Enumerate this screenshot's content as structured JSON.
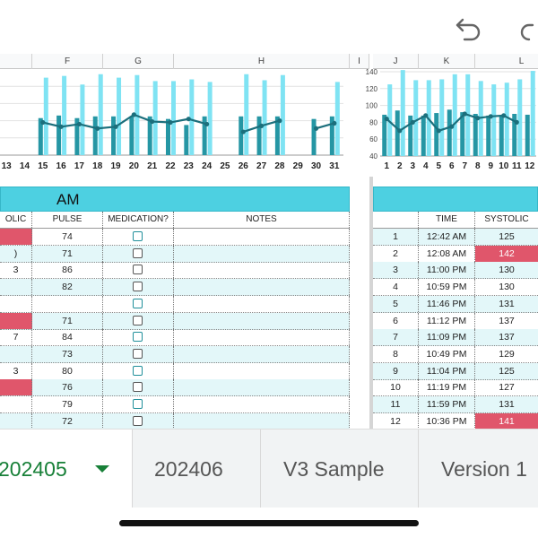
{
  "toolbar": {
    "undo_icon": "undo-icon",
    "redo_icon": "redo-icon"
  },
  "columns_left": [
    "F",
    "G",
    "H",
    "I"
  ],
  "columns_right": [
    "J",
    "K",
    "L"
  ],
  "colors": {
    "light_bar": "#7fe3f3",
    "dark_bar": "#2596a4",
    "line": "#1c6f7c",
    "header_band": "#4dd0e1",
    "alert": "#e0566b",
    "active_tab": "#188038"
  },
  "chart_data": [
    {
      "type": "bar",
      "x": [
        "13",
        "14",
        "15",
        "16",
        "17",
        "18",
        "19",
        "20",
        "21",
        "22",
        "23",
        "24",
        "25",
        "26",
        "27",
        "28",
        "29",
        "30",
        "31"
      ],
      "series": [
        {
          "values": [
            null,
            null,
            130,
            132,
            122,
            134,
            130,
            133,
            126,
            126,
            128,
            125,
            null,
            134,
            127,
            133,
            null,
            null,
            125
          ]
        },
        {
          "values": [
            null,
            null,
            83,
            86,
            83,
            85,
            85,
            85,
            85,
            82,
            75,
            85,
            null,
            85,
            85,
            85,
            null,
            82,
            85
          ]
        },
        {
          "values": [
            null,
            null,
            78,
            73,
            76,
            71,
            73,
            87,
            79,
            78,
            82,
            76,
            null,
            67,
            74,
            80,
            null,
            71,
            77
          ]
        }
      ],
      "xlabel": "",
      "ylabel": ""
    },
    {
      "type": "bar",
      "x": [
        "1",
        "2",
        "3",
        "4",
        "5",
        "6",
        "7",
        "8",
        "9",
        "10",
        "11",
        "12"
      ],
      "series": [
        {
          "values": [
            125,
            142,
            130,
            130,
            131,
            137,
            137,
            129,
            125,
            127,
            131,
            141
          ]
        },
        {
          "values": [
            89,
            94,
            88,
            88,
            91,
            95,
            92,
            90,
            88,
            87,
            90,
            89
          ]
        },
        {
          "values": [
            84,
            70,
            80,
            88,
            70,
            75,
            90,
            85,
            87,
            88,
            80,
            null
          ]
        }
      ],
      "yticks": [
        "140",
        "120",
        "100",
        "80",
        "60",
        "40"
      ],
      "ylim": [
        40,
        140
      ]
    }
  ],
  "am_table": {
    "title": "AM",
    "headers": {
      "systolic_partial": "OLIC",
      "pulse": "PULSE",
      "medication": "MEDICATION?",
      "notes": "NOTES"
    },
    "rows": [
      {
        "sys": "",
        "sys_alert": true,
        "pulse": "74",
        "med_teal": true
      },
      {
        "sys": ")",
        "sys_alert": false,
        "pulse": "71",
        "med_teal": false
      },
      {
        "sys": "3",
        "sys_alert": false,
        "pulse": "86",
        "med_teal": false
      },
      {
        "sys": "",
        "sys_alert": false,
        "pulse": "82",
        "med_teal": false
      },
      {
        "sys": "",
        "sys_alert": false,
        "pulse": "",
        "med_teal": true
      },
      {
        "sys": "",
        "sys_alert": true,
        "pulse": "71",
        "med_teal": false
      },
      {
        "sys": "7",
        "sys_alert": false,
        "pulse": "84",
        "med_teal": true
      },
      {
        "sys": "",
        "sys_alert": false,
        "pulse": "73",
        "med_teal": false
      },
      {
        "sys": "3",
        "sys_alert": false,
        "pulse": "80",
        "med_teal": true
      },
      {
        "sys": "",
        "sys_alert": true,
        "pulse": "76",
        "med_teal": false
      },
      {
        "sys": "",
        "sys_alert": false,
        "pulse": "79",
        "med_teal": true
      },
      {
        "sys": "",
        "sys_alert": false,
        "pulse": "72",
        "med_teal": false
      }
    ]
  },
  "pm_table": {
    "headers": {
      "num": "",
      "time": "TIME",
      "systolic": "SYSTOLIC"
    },
    "rows": [
      {
        "n": "1",
        "time": "12:42 AM",
        "sys": "125",
        "alert": false
      },
      {
        "n": "2",
        "time": "12:08 AM",
        "sys": "142",
        "alert": true
      },
      {
        "n": "3",
        "time": "11:00 PM",
        "sys": "130",
        "alert": false
      },
      {
        "n": "4",
        "time": "10:59 PM",
        "sys": "130",
        "alert": false
      },
      {
        "n": "5",
        "time": "11:46 PM",
        "sys": "131",
        "alert": false
      },
      {
        "n": "6",
        "time": "11:12 PM",
        "sys": "137",
        "alert": false
      },
      {
        "n": "7",
        "time": "11:09 PM",
        "sys": "137",
        "alert": false
      },
      {
        "n": "8",
        "time": "10:49 PM",
        "sys": "129",
        "alert": false
      },
      {
        "n": "9",
        "time": "11:04 PM",
        "sys": "125",
        "alert": false
      },
      {
        "n": "10",
        "time": "11:19 PM",
        "sys": "127",
        "alert": false
      },
      {
        "n": "11",
        "time": "11:59 PM",
        "sys": "131",
        "alert": false
      },
      {
        "n": "12",
        "time": "10:36 PM",
        "sys": "141",
        "alert": true
      }
    ]
  },
  "sheet_tabs": [
    {
      "label": "202405",
      "active": true
    },
    {
      "label": "202406",
      "active": false
    },
    {
      "label": "V3 Sample",
      "active": false
    },
    {
      "label": "Version 1",
      "active": false
    }
  ]
}
